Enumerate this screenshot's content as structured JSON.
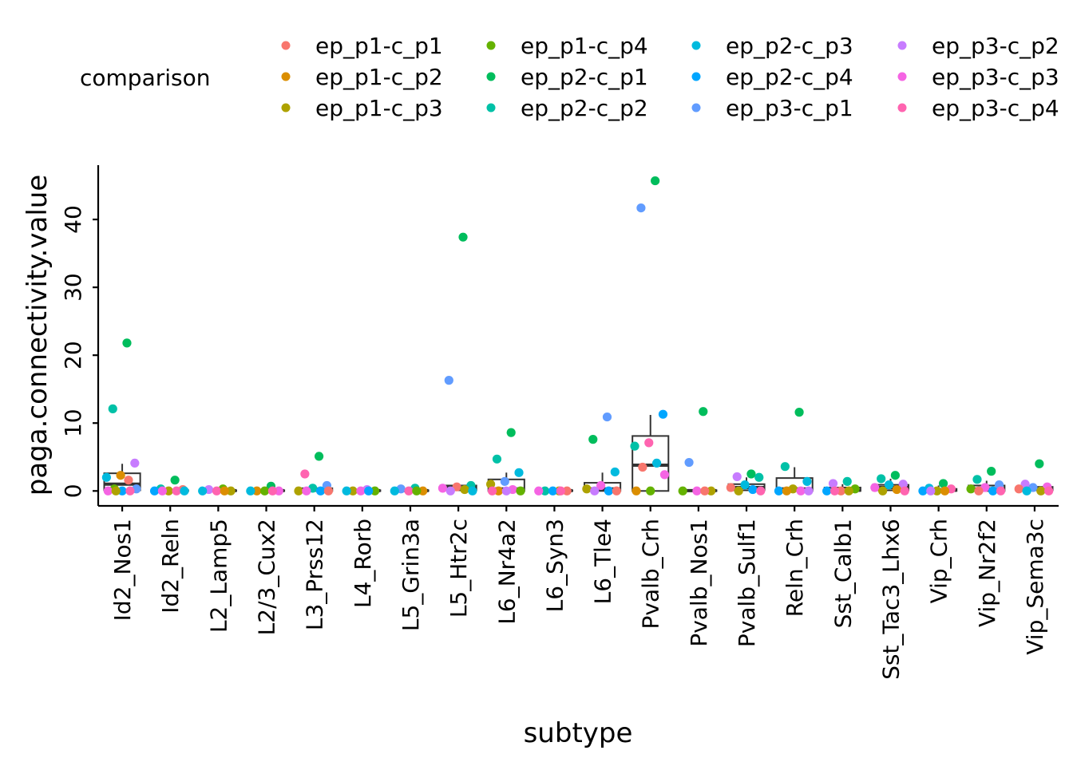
{
  "chart_data": {
    "type": "box",
    "xlabel": "subtype",
    "ylabel": "paga.connectivity.value",
    "ylim": [
      -2.2,
      48
    ],
    "yticks": [
      0,
      10,
      20,
      30,
      40
    ],
    "categories": [
      "Id2_Nos1",
      "Id2_Reln",
      "L2_Lamp5",
      "L2/3_Cux2",
      "L3_Prss12",
      "L4_Rorb",
      "L5_Grin3a",
      "L5_Htr2c",
      "L6_Nr4a2",
      "L6_Syn3",
      "L6_Tle4",
      "Pvalb_Crh",
      "Pvalb_Nos1",
      "Pvalb_Sulf1",
      "Reln_Crh",
      "Sst_Calb1",
      "Sst_Tac3_Lhx6",
      "Vip_Crh",
      "Vip_Nr2f2",
      "Vip_Sema3c"
    ],
    "legend": {
      "title": "comparison",
      "position": "top",
      "entries": [
        {
          "name": "ep_p1-c_p1",
          "color": "#F8766D"
        },
        {
          "name": "ep_p1-c_p2",
          "color": "#DB8E00"
        },
        {
          "name": "ep_p1-c_p3",
          "color": "#AEA200"
        },
        {
          "name": "ep_p1-c_p4",
          "color": "#64B200"
        },
        {
          "name": "ep_p2-c_p1",
          "color": "#00BD5C"
        },
        {
          "name": "ep_p2-c_p2",
          "color": "#00C1A7"
        },
        {
          "name": "ep_p2-c_p3",
          "color": "#00BADE"
        },
        {
          "name": "ep_p2-c_p4",
          "color": "#00A6FF"
        },
        {
          "name": "ep_p3-c_p1",
          "color": "#619CFF"
        },
        {
          "name": "ep_p3-c_p2",
          "color": "#C77CFF"
        },
        {
          "name": "ep_p3-c_p3",
          "color": "#F564E3"
        },
        {
          "name": "ep_p3-c_p4",
          "color": "#FF64B0"
        }
      ]
    },
    "boxes": [
      {
        "q1": 0.1,
        "median": 1.0,
        "q3": 2.6,
        "whisker_low": 0,
        "whisker_high": 4.0
      },
      {
        "q1": 0,
        "median": 0.05,
        "q3": 0.1,
        "whisker_low": 0,
        "whisker_high": 0.2
      },
      {
        "q1": 0,
        "median": 0.05,
        "q3": 0.1,
        "whisker_low": 0,
        "whisker_high": 0.2
      },
      {
        "q1": 0,
        "median": 0.05,
        "q3": 0.1,
        "whisker_low": 0,
        "whisker_high": 0.2
      },
      {
        "q1": 0,
        "median": 0.1,
        "q3": 0.4,
        "whisker_low": 0,
        "whisker_high": 0.6
      },
      {
        "q1": 0,
        "median": 0.05,
        "q3": 0.1,
        "whisker_low": 0,
        "whisker_high": 0.2
      },
      {
        "q1": 0,
        "median": 0.05,
        "q3": 0.1,
        "whisker_low": 0,
        "whisker_high": 0.2
      },
      {
        "q1": 0.1,
        "median": 0.5,
        "q3": 0.8,
        "whisker_low": 0,
        "whisker_high": 0.8
      },
      {
        "q1": 0,
        "median": 0.3,
        "q3": 1.7,
        "whisker_low": 0,
        "whisker_high": 2.7
      },
      {
        "q1": 0,
        "median": 0.05,
        "q3": 0.1,
        "whisker_low": 0,
        "whisker_high": 0.2
      },
      {
        "q1": 0,
        "median": 0.3,
        "q3": 1.2,
        "whisker_low": 0,
        "whisker_high": 2.7
      },
      {
        "q1": 0,
        "median": 3.8,
        "q3": 8.1,
        "whisker_low": 0,
        "whisker_high": 11.2
      },
      {
        "q1": 0,
        "median": 0.05,
        "q3": 0.1,
        "whisker_low": 0,
        "whisker_high": 0.1
      },
      {
        "q1": 0.1,
        "median": 0.5,
        "q3": 1.0,
        "whisker_low": 0,
        "whisker_high": 2.0
      },
      {
        "q1": 0,
        "median": 0.3,
        "q3": 1.9,
        "whisker_low": 0,
        "whisker_high": 3.5
      },
      {
        "q1": 0,
        "median": 0.1,
        "q3": 0.5,
        "whisker_low": 0,
        "whisker_high": 1.0
      },
      {
        "q1": 0.1,
        "median": 0.5,
        "q3": 0.9,
        "whisker_low": 0,
        "whisker_high": 1.8
      },
      {
        "q1": 0,
        "median": 0.1,
        "q3": 0.3,
        "whisker_low": 0,
        "whisker_high": 0.8
      },
      {
        "q1": 0,
        "median": 0.3,
        "q3": 0.8,
        "whisker_low": 0,
        "whisker_high": 1.5
      },
      {
        "q1": 0.1,
        "median": 0.3,
        "q3": 0.6,
        "whisker_low": 0,
        "whisker_high": 1.0
      }
    ],
    "points": [
      {
        "c": 0,
        "s": "ep_p2-c_p1",
        "y": 21.8
      },
      {
        "c": 0,
        "s": "ep_p2-c_p2",
        "y": 12.1
      },
      {
        "c": 0,
        "s": "ep_p3-c_p2",
        "y": 4.1
      },
      {
        "c": 0,
        "s": "ep_p1-c_p2",
        "y": 2.3
      },
      {
        "c": 0,
        "s": "ep_p2-c_p3",
        "y": 2.0
      },
      {
        "c": 0,
        "s": "ep_p1-c_p1",
        "y": 1.6
      },
      {
        "c": 0,
        "s": "ep_p1-c_p4",
        "y": 0.3
      },
      {
        "c": 0,
        "s": "ep_p3-c_p1",
        "y": 0.3
      },
      {
        "c": 0,
        "s": "ep_p2-c_p4",
        "y": 0
      },
      {
        "c": 0,
        "s": "ep_p3-c_p3",
        "y": 0
      },
      {
        "c": 0,
        "s": "ep_p3-c_p4",
        "y": 0
      },
      {
        "c": 0,
        "s": "ep_p1-c_p3",
        "y": 0
      },
      {
        "c": 1,
        "s": "ep_p2-c_p1",
        "y": 1.6
      },
      {
        "c": 1,
        "s": "ep_p2-c_p2",
        "y": 0.3
      },
      {
        "c": 1,
        "s": "ep_p1-c_p1",
        "y": 0.2
      },
      {
        "c": 1,
        "s": "ep_p1-c_p3",
        "y": 0
      },
      {
        "c": 1,
        "s": "ep_p2-c_p4",
        "y": 0
      },
      {
        "c": 1,
        "s": "ep_p3-c_p4",
        "y": 0
      },
      {
        "c": 1,
        "s": "ep_p3-c_p3",
        "y": 0
      },
      {
        "c": 1,
        "s": "ep_p2-c_p3",
        "y": 0
      },
      {
        "c": 2,
        "s": "ep_p1-c_p4",
        "y": 0.3
      },
      {
        "c": 2,
        "s": "ep_p3-c_p2",
        "y": 0.2
      },
      {
        "c": 2,
        "s": "ep_p1-c_p3",
        "y": 0
      },
      {
        "c": 2,
        "s": "ep_p3-c_p4",
        "y": 0
      },
      {
        "c": 2,
        "s": "ep_p2-c_p3",
        "y": 0
      },
      {
        "c": 2,
        "s": "ep_p1-c_p2",
        "y": 0
      },
      {
        "c": 3,
        "s": "ep_p2-c_p1",
        "y": 0.7
      },
      {
        "c": 3,
        "s": "ep_p1-c_p2",
        "y": 0
      },
      {
        "c": 3,
        "s": "ep_p3-c_p3",
        "y": 0
      },
      {
        "c": 3,
        "s": "ep_p1-c_p4",
        "y": 0
      },
      {
        "c": 3,
        "s": "ep_p2-c_p3",
        "y": 0
      },
      {
        "c": 3,
        "s": "ep_p3-c_p4",
        "y": 0
      },
      {
        "c": 4,
        "s": "ep_p2-c_p1",
        "y": 5.1
      },
      {
        "c": 4,
        "s": "ep_p3-c_p4",
        "y": 2.5
      },
      {
        "c": 4,
        "s": "ep_p3-c_p1",
        "y": 0.8
      },
      {
        "c": 4,
        "s": "ep_p2-c_p2",
        "y": 0.4
      },
      {
        "c": 4,
        "s": "ep_p1-c_p3",
        "y": 0
      },
      {
        "c": 4,
        "s": "ep_p2-c_p4",
        "y": 0
      },
      {
        "c": 4,
        "s": "ep_p3-c_p3",
        "y": 0
      },
      {
        "c": 4,
        "s": "ep_p1-c_p1",
        "y": 0
      },
      {
        "c": 5,
        "s": "ep_p3-c_p2",
        "y": 0.2
      },
      {
        "c": 5,
        "s": "ep_p1-c_p3",
        "y": 0
      },
      {
        "c": 5,
        "s": "ep_p1-c_p4",
        "y": 0
      },
      {
        "c": 5,
        "s": "ep_p3-c_p3",
        "y": 0
      },
      {
        "c": 5,
        "s": "ep_p2-c_p3",
        "y": 0
      },
      {
        "c": 5,
        "s": "ep_p2-c_p4",
        "y": 0
      },
      {
        "c": 6,
        "s": "ep_p2-c_p2",
        "y": 0.4
      },
      {
        "c": 6,
        "s": "ep_p3-c_p1",
        "y": 0.3
      },
      {
        "c": 6,
        "s": "ep_p1-c_p2",
        "y": 0
      },
      {
        "c": 6,
        "s": "ep_p3-c_p4",
        "y": 0
      },
      {
        "c": 6,
        "s": "ep_p2-c_p3",
        "y": 0
      },
      {
        "c": 6,
        "s": "ep_p1-c_p4",
        "y": 0
      },
      {
        "c": 7,
        "s": "ep_p2-c_p1",
        "y": 37.4
      },
      {
        "c": 7,
        "s": "ep_p3-c_p1",
        "y": 16.3
      },
      {
        "c": 7,
        "s": "ep_p2-c_p2",
        "y": 0.8
      },
      {
        "c": 7,
        "s": "ep_p1-c_p1",
        "y": 0.6
      },
      {
        "c": 7,
        "s": "ep_p3-c_p3",
        "y": 0.4
      },
      {
        "c": 7,
        "s": "ep_p1-c_p3",
        "y": 0.2
      },
      {
        "c": 7,
        "s": "ep_p3-c_p2",
        "y": 0
      },
      {
        "c": 7,
        "s": "ep_p2-c_p3",
        "y": 0
      },
      {
        "c": 8,
        "s": "ep_p2-c_p1",
        "y": 8.6
      },
      {
        "c": 8,
        "s": "ep_p2-c_p2",
        "y": 4.7
      },
      {
        "c": 8,
        "s": "ep_p2-c_p3",
        "y": 2.7
      },
      {
        "c": 8,
        "s": "ep_p3-c_p1",
        "y": 1.4
      },
      {
        "c": 8,
        "s": "ep_p1-c_p3",
        "y": 1.0
      },
      {
        "c": 8,
        "s": "ep_p3-c_p3",
        "y": 0.2
      },
      {
        "c": 8,
        "s": "ep_p1-c_p2",
        "y": 0
      },
      {
        "c": 8,
        "s": "ep_p1-c_p4",
        "y": 0
      },
      {
        "c": 8,
        "s": "ep_p3-c_p2",
        "y": 0
      },
      {
        "c": 8,
        "s": "ep_p3-c_p4",
        "y": 0
      },
      {
        "c": 9,
        "s": "ep_p1-c_p3",
        "y": 0
      },
      {
        "c": 9,
        "s": "ep_p2-c_p2",
        "y": 0
      },
      {
        "c": 9,
        "s": "ep_p1-c_p1",
        "y": 0
      },
      {
        "c": 9,
        "s": "ep_p2-c_p4",
        "y": 0
      },
      {
        "c": 9,
        "s": "ep_p3-c_p3",
        "y": 0
      },
      {
        "c": 9,
        "s": "ep_p3-c_p4",
        "y": 0
      },
      {
        "c": 10,
        "s": "ep_p3-c_p1",
        "y": 10.9
      },
      {
        "c": 10,
        "s": "ep_p2-c_p1",
        "y": 7.6
      },
      {
        "c": 10,
        "s": "ep_p2-c_p3",
        "y": 2.8
      },
      {
        "c": 10,
        "s": "ep_p3-c_p3",
        "y": 0.8
      },
      {
        "c": 10,
        "s": "ep_p1-c_p3",
        "y": 0.3
      },
      {
        "c": 10,
        "s": "ep_p2-c_p4",
        "y": 0
      },
      {
        "c": 10,
        "s": "ep_p3-c_p2",
        "y": 0
      },
      {
        "c": 10,
        "s": "ep_p1-c_p1",
        "y": 0
      },
      {
        "c": 11,
        "s": "ep_p2-c_p1",
        "y": 45.7
      },
      {
        "c": 11,
        "s": "ep_p3-c_p1",
        "y": 41.7
      },
      {
        "c": 11,
        "s": "ep_p2-c_p4",
        "y": 11.3
      },
      {
        "c": 11,
        "s": "ep_p3-c_p4",
        "y": 7.1
      },
      {
        "c": 11,
        "s": "ep_p2-c_p2",
        "y": 6.6
      },
      {
        "c": 11,
        "s": "ep_p2-c_p3",
        "y": 4.1
      },
      {
        "c": 11,
        "s": "ep_p1-c_p1",
        "y": 3.5
      },
      {
        "c": 11,
        "s": "ep_p3-c_p3",
        "y": 2.4
      },
      {
        "c": 11,
        "s": "ep_p1-c_p4",
        "y": 0
      },
      {
        "c": 11,
        "s": "ep_p1-c_p2",
        "y": 0
      },
      {
        "c": 12,
        "s": "ep_p2-c_p1",
        "y": 11.7
      },
      {
        "c": 12,
        "s": "ep_p3-c_p1",
        "y": 4.2
      },
      {
        "c": 12,
        "s": "ep_p1-c_p3",
        "y": 0
      },
      {
        "c": 12,
        "s": "ep_p3-c_p3",
        "y": 0
      },
      {
        "c": 12,
        "s": "ep_p1-c_p4",
        "y": 0
      },
      {
        "c": 12,
        "s": "ep_p1-c_p1",
        "y": 0
      },
      {
        "c": 13,
        "s": "ep_p2-c_p1",
        "y": 2.5
      },
      {
        "c": 13,
        "s": "ep_p3-c_p2",
        "y": 2.1
      },
      {
        "c": 13,
        "s": "ep_p2-c_p2",
        "y": 2.0
      },
      {
        "c": 13,
        "s": "ep_p2-c_p3",
        "y": 0.9
      },
      {
        "c": 13,
        "s": "ep_p1-c_p1",
        "y": 0.5
      },
      {
        "c": 13,
        "s": "ep_p2-c_p4",
        "y": 0.2
      },
      {
        "c": 13,
        "s": "ep_p1-c_p3",
        "y": 0
      },
      {
        "c": 13,
        "s": "ep_p3-c_p4",
        "y": 0
      },
      {
        "c": 14,
        "s": "ep_p2-c_p1",
        "y": 11.6
      },
      {
        "c": 14,
        "s": "ep_p2-c_p2",
        "y": 3.6
      },
      {
        "c": 14,
        "s": "ep_p2-c_p3",
        "y": 1.4
      },
      {
        "c": 14,
        "s": "ep_p1-c_p3",
        "y": 0.3
      },
      {
        "c": 14,
        "s": "ep_p2-c_p4",
        "y": 0
      },
      {
        "c": 14,
        "s": "ep_p3-c_p3",
        "y": 0
      },
      {
        "c": 14,
        "s": "ep_p1-c_p2",
        "y": 0
      },
      {
        "c": 14,
        "s": "ep_p3-c_p2",
        "y": 0
      },
      {
        "c": 15,
        "s": "ep_p2-c_p2",
        "y": 1.4
      },
      {
        "c": 15,
        "s": "ep_p3-c_p2",
        "y": 1.1
      },
      {
        "c": 15,
        "s": "ep_p1-c_p4",
        "y": 0.3
      },
      {
        "c": 15,
        "s": "ep_p1-c_p1",
        "y": 0
      },
      {
        "c": 15,
        "s": "ep_p2-c_p4",
        "y": 0
      },
      {
        "c": 15,
        "s": "ep_p1-c_p3",
        "y": 0
      },
      {
        "c": 15,
        "s": "ep_p3-c_p4",
        "y": 0
      },
      {
        "c": 16,
        "s": "ep_p2-c_p1",
        "y": 2.3
      },
      {
        "c": 16,
        "s": "ep_p2-c_p2",
        "y": 1.8
      },
      {
        "c": 16,
        "s": "ep_p3-c_p2",
        "y": 1.0
      },
      {
        "c": 16,
        "s": "ep_p2-c_p3",
        "y": 0.9
      },
      {
        "c": 16,
        "s": "ep_p3-c_p3",
        "y": 0.5
      },
      {
        "c": 16,
        "s": "ep_p1-c_p2",
        "y": 0.2
      },
      {
        "c": 16,
        "s": "ep_p1-c_p3",
        "y": 0
      },
      {
        "c": 16,
        "s": "ep_p3-c_p4",
        "y": 0
      },
      {
        "c": 17,
        "s": "ep_p2-c_p1",
        "y": 1.1
      },
      {
        "c": 17,
        "s": "ep_p2-c_p3",
        "y": 0.4
      },
      {
        "c": 17,
        "s": "ep_p3-c_p4",
        "y": 0.3
      },
      {
        "c": 17,
        "s": "ep_p1-c_p3",
        "y": 0
      },
      {
        "c": 17,
        "s": "ep_p2-c_p4",
        "y": 0
      },
      {
        "c": 17,
        "s": "ep_p1-c_p2",
        "y": 0
      },
      {
        "c": 17,
        "s": "ep_p3-c_p2",
        "y": 0
      },
      {
        "c": 18,
        "s": "ep_p2-c_p1",
        "y": 2.9
      },
      {
        "c": 18,
        "s": "ep_p2-c_p2",
        "y": 1.7
      },
      {
        "c": 18,
        "s": "ep_p3-c_p1",
        "y": 0.9
      },
      {
        "c": 18,
        "s": "ep_p3-c_p3",
        "y": 0.5
      },
      {
        "c": 18,
        "s": "ep_p1-c_p4",
        "y": 0.3
      },
      {
        "c": 18,
        "s": "ep_p2-c_p4",
        "y": 0
      },
      {
        "c": 18,
        "s": "ep_p1-c_p1",
        "y": 0
      },
      {
        "c": 18,
        "s": "ep_p3-c_p4",
        "y": 0
      },
      {
        "c": 19,
        "s": "ep_p2-c_p1",
        "y": 4.0
      },
      {
        "c": 19,
        "s": "ep_p3-c_p2",
        "y": 1.0
      },
      {
        "c": 19,
        "s": "ep_p3-c_p3",
        "y": 0.6
      },
      {
        "c": 19,
        "s": "ep_p3-c_p1",
        "y": 0.5
      },
      {
        "c": 19,
        "s": "ep_p1-c_p1",
        "y": 0.3
      },
      {
        "c": 19,
        "s": "ep_p1-c_p3",
        "y": 0
      },
      {
        "c": 19,
        "s": "ep_p2-c_p3",
        "y": 0
      },
      {
        "c": 19,
        "s": "ep_p3-c_p4",
        "y": 0
      }
    ]
  }
}
